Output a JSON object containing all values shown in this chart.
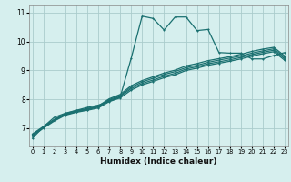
{
  "xlabel": "Humidex (Indice chaleur)",
  "bg_color": "#d6efee",
  "grid_color": "#aacccc",
  "line_color": "#1a7070",
  "x_ticks": [
    0,
    1,
    2,
    3,
    4,
    5,
    6,
    7,
    8,
    9,
    10,
    11,
    12,
    13,
    14,
    15,
    16,
    17,
    18,
    19,
    20,
    21,
    22,
    23
  ],
  "y_ticks": [
    7,
    8,
    9,
    10,
    11
  ],
  "ylim": [
    6.4,
    11.25
  ],
  "xlim": [
    -0.3,
    23.3
  ],
  "line1_x": [
    0,
    1,
    2,
    3,
    4,
    5,
    6,
    7,
    8,
    9,
    10,
    11,
    12,
    13,
    14,
    15,
    16,
    17,
    18,
    19,
    20,
    21,
    22,
    23
  ],
  "line1_y": [
    6.65,
    7.05,
    7.38,
    7.52,
    7.62,
    7.72,
    7.8,
    7.93,
    8.08,
    9.42,
    10.88,
    10.8,
    10.4,
    10.85,
    10.85,
    10.38,
    10.42,
    9.62,
    9.6,
    9.6,
    9.4,
    9.4,
    9.52,
    9.62
  ],
  "line2_x": [
    0,
    1,
    2,
    3,
    4,
    5,
    6,
    7,
    8,
    9,
    10,
    11,
    12,
    13,
    14,
    15,
    16,
    17,
    18,
    19,
    20,
    21,
    22,
    23
  ],
  "line2_y": [
    6.72,
    7.0,
    7.25,
    7.45,
    7.55,
    7.62,
    7.7,
    7.92,
    8.05,
    8.32,
    8.5,
    8.62,
    8.75,
    8.85,
    9.0,
    9.08,
    9.18,
    9.25,
    9.32,
    9.4,
    9.5,
    9.58,
    9.65,
    9.35
  ],
  "line3_x": [
    0,
    1,
    2,
    3,
    4,
    5,
    6,
    7,
    8,
    9,
    10,
    11,
    12,
    13,
    14,
    15,
    16,
    17,
    18,
    19,
    20,
    21,
    22,
    23
  ],
  "line3_y": [
    6.76,
    7.02,
    7.27,
    7.47,
    7.57,
    7.64,
    7.73,
    7.96,
    8.1,
    8.37,
    8.55,
    8.67,
    8.8,
    8.9,
    9.05,
    9.13,
    9.23,
    9.3,
    9.37,
    9.45,
    9.55,
    9.63,
    9.7,
    9.4
  ],
  "line4_x": [
    0,
    1,
    2,
    3,
    4,
    5,
    6,
    7,
    8,
    9,
    10,
    11,
    12,
    13,
    14,
    15,
    16,
    17,
    18,
    19,
    20,
    21,
    22,
    23
  ],
  "line4_y": [
    6.78,
    7.04,
    7.29,
    7.49,
    7.59,
    7.66,
    7.75,
    7.99,
    8.13,
    8.42,
    8.6,
    8.73,
    8.86,
    8.96,
    9.1,
    9.18,
    9.28,
    9.36,
    9.43,
    9.5,
    9.6,
    9.68,
    9.75,
    9.45
  ],
  "line5_x": [
    0,
    1,
    2,
    3,
    4,
    5,
    6,
    7,
    8,
    9,
    10,
    11,
    12,
    13,
    14,
    15,
    16,
    17,
    18,
    19,
    20,
    21,
    22,
    23
  ],
  "line5_y": [
    6.8,
    7.06,
    7.31,
    7.51,
    7.61,
    7.68,
    7.77,
    8.02,
    8.17,
    8.47,
    8.65,
    8.78,
    8.91,
    9.01,
    9.16,
    9.24,
    9.34,
    9.41,
    9.48,
    9.56,
    9.66,
    9.74,
    9.8,
    9.5
  ]
}
